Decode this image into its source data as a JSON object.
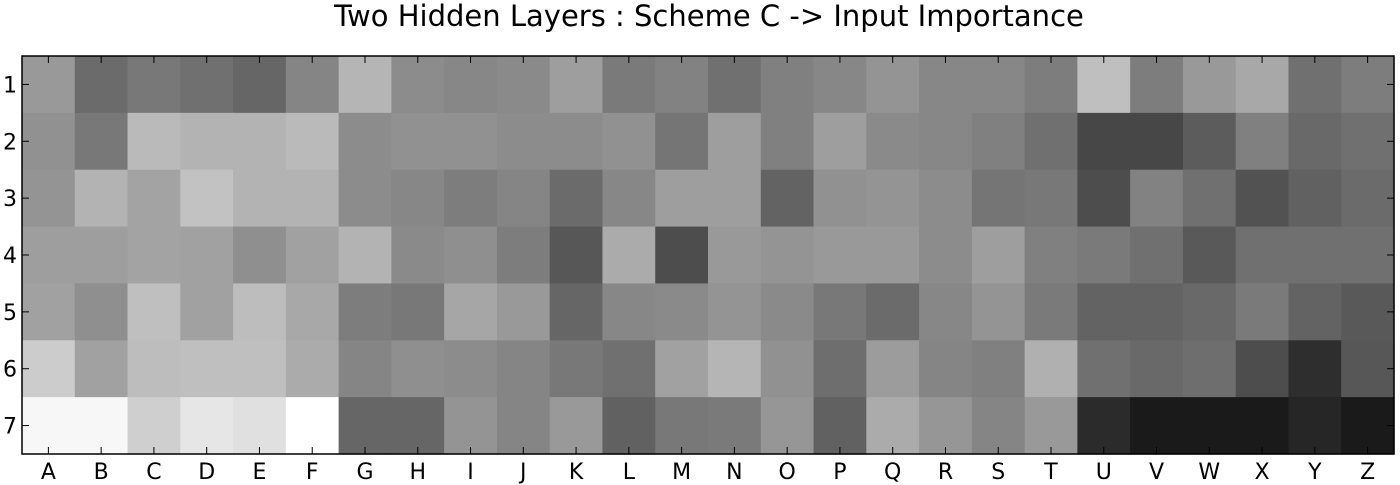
{
  "chart_data": {
    "type": "heatmap",
    "title": "Two Hidden Layers : Scheme C -> Input Importance",
    "xlabel": "",
    "ylabel": "",
    "x_categories": [
      "A",
      "B",
      "C",
      "D",
      "E",
      "F",
      "G",
      "H",
      "I",
      "J",
      "K",
      "L",
      "M",
      "N",
      "O",
      "P",
      "Q",
      "R",
      "S",
      "T",
      "U",
      "V",
      "W",
      "X",
      "Y",
      "Z"
    ],
    "y_categories": [
      "1",
      "2",
      "3",
      "4",
      "5",
      "6",
      "7"
    ],
    "colormap": "gray",
    "grid": false,
    "value_range": [
      0,
      1
    ],
    "values": [
      [
        0.6,
        0.42,
        0.47,
        0.44,
        0.4,
        0.52,
        0.71,
        0.55,
        0.53,
        0.54,
        0.62,
        0.48,
        0.51,
        0.44,
        0.5,
        0.53,
        0.58,
        0.53,
        0.53,
        0.49,
        0.75,
        0.49,
        0.6,
        0.66,
        0.44,
        0.49
      ],
      [
        0.57,
        0.47,
        0.73,
        0.7,
        0.7,
        0.73,
        0.55,
        0.57,
        0.57,
        0.55,
        0.55,
        0.57,
        0.46,
        0.62,
        0.5,
        0.62,
        0.54,
        0.53,
        0.5,
        0.44,
        0.28,
        0.28,
        0.36,
        0.5,
        0.41,
        0.44
      ],
      [
        0.58,
        0.7,
        0.64,
        0.76,
        0.7,
        0.7,
        0.55,
        0.53,
        0.49,
        0.52,
        0.42,
        0.53,
        0.62,
        0.62,
        0.39,
        0.57,
        0.58,
        0.55,
        0.46,
        0.47,
        0.3,
        0.51,
        0.44,
        0.32,
        0.38,
        0.42
      ],
      [
        0.62,
        0.62,
        0.64,
        0.63,
        0.56,
        0.63,
        0.7,
        0.54,
        0.56,
        0.49,
        0.34,
        0.67,
        0.3,
        0.6,
        0.58,
        0.6,
        0.6,
        0.55,
        0.62,
        0.5,
        0.48,
        0.44,
        0.35,
        0.44,
        0.44,
        0.44
      ],
      [
        0.63,
        0.56,
        0.75,
        0.63,
        0.74,
        0.66,
        0.49,
        0.47,
        0.65,
        0.6,
        0.4,
        0.53,
        0.54,
        0.58,
        0.54,
        0.47,
        0.42,
        0.53,
        0.58,
        0.48,
        0.39,
        0.39,
        0.41,
        0.48,
        0.39,
        0.35
      ],
      [
        0.8,
        0.63,
        0.74,
        0.75,
        0.75,
        0.67,
        0.52,
        0.56,
        0.55,
        0.52,
        0.47,
        0.44,
        0.63,
        0.71,
        0.57,
        0.43,
        0.61,
        0.52,
        0.5,
        0.69,
        0.44,
        0.41,
        0.43,
        0.3,
        0.18,
        0.34
      ],
      [
        0.97,
        0.97,
        0.81,
        0.9,
        0.88,
        1.0,
        0.4,
        0.4,
        0.58,
        0.52,
        0.6,
        0.38,
        0.47,
        0.48,
        0.59,
        0.38,
        0.67,
        0.59,
        0.52,
        0.6,
        0.17,
        0.1,
        0.1,
        0.1,
        0.15,
        0.1
      ]
    ]
  }
}
